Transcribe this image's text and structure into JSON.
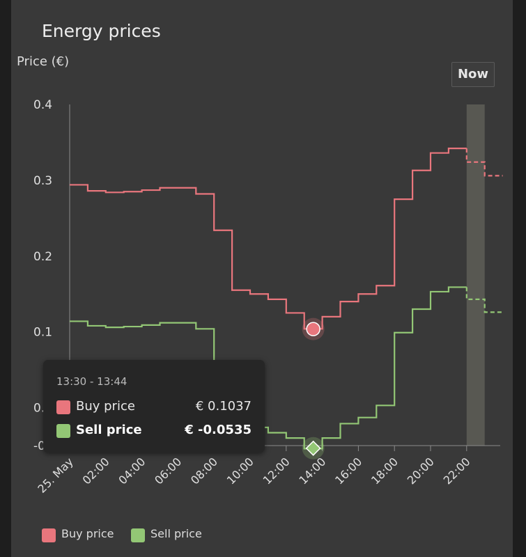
{
  "title": "Energy prices",
  "y_axis_label": "Price (€)",
  "now_button": "Now",
  "colors": {
    "buy": "#e9767d",
    "sell": "#93c775",
    "axis": "#8a8a8a",
    "background": "#393939",
    "now_band": "#585852"
  },
  "chart_data": {
    "type": "line",
    "step": true,
    "title": "Energy prices",
    "ylabel": "Price (€)",
    "xlabel": "",
    "ylim": [
      -0.05,
      0.4
    ],
    "yticks": [
      "0.4",
      "0.3",
      "0.2",
      "0.1",
      "0.0",
      "-0.0"
    ],
    "xlim_hours": [
      0,
      24
    ],
    "xticks": [
      {
        "hour": 0,
        "label": "25. May"
      },
      {
        "hour": 2,
        "label": "02:00"
      },
      {
        "hour": 4,
        "label": "04:00"
      },
      {
        "hour": 6,
        "label": "06:00"
      },
      {
        "hour": 8,
        "label": "08:00"
      },
      {
        "hour": 10,
        "label": "10:00"
      },
      {
        "hour": 12,
        "label": "12:00"
      },
      {
        "hour": 14,
        "label": "14:00"
      },
      {
        "hour": 16,
        "label": "16:00"
      },
      {
        "hour": 18,
        "label": "18:00"
      },
      {
        "hour": 20,
        "label": "20:00"
      },
      {
        "hour": 22,
        "label": "22:00"
      }
    ],
    "now_band_hours": [
      22,
      23
    ],
    "forecast_from_hour": 22,
    "series": [
      {
        "name": "Buy price",
        "color": "#e9767d",
        "x_hours": [
          0,
          1,
          2,
          3,
          4,
          5,
          6,
          7,
          8,
          9,
          10,
          11,
          12,
          13,
          14,
          15,
          16,
          17,
          18,
          19,
          20,
          21,
          22,
          23
        ],
        "values": [
          0.294,
          0.286,
          0.284,
          0.285,
          0.287,
          0.29,
          0.29,
          0.282,
          0.234,
          0.155,
          0.15,
          0.143,
          0.125,
          0.104,
          0.12,
          0.14,
          0.15,
          0.161,
          0.275,
          0.313,
          0.336,
          0.342,
          0.324,
          0.306
        ]
      },
      {
        "name": "Sell price",
        "color": "#93c775",
        "x_hours": [
          0,
          1,
          2,
          3,
          4,
          5,
          6,
          7,
          8,
          9,
          10,
          11,
          12,
          13,
          14,
          15,
          16,
          17,
          18,
          19,
          20,
          21,
          22,
          23
        ],
        "values": [
          0.114,
          0.108,
          0.106,
          0.107,
          0.109,
          0.112,
          0.112,
          0.104,
          0.062,
          -0.022,
          -0.026,
          -0.033,
          -0.04,
          -0.054,
          -0.04,
          -0.021,
          -0.013,
          0.003,
          0.099,
          0.13,
          0.153,
          0.159,
          0.143,
          0.126
        ]
      }
    ],
    "highlight": {
      "hour": 13.5,
      "buy": 0.1037,
      "sell": -0.0535
    },
    "legend": {
      "position": "bottom-left",
      "items": [
        "Buy price",
        "Sell price"
      ]
    }
  },
  "tooltip": {
    "time": "13:30 - 13:44",
    "rows": [
      {
        "label": "Buy price",
        "value": "€ 0.1037"
      },
      {
        "label": "Sell price",
        "value": "€ -0.0535"
      }
    ]
  },
  "legend": [
    {
      "label": "Buy price"
    },
    {
      "label": "Sell price"
    }
  ]
}
